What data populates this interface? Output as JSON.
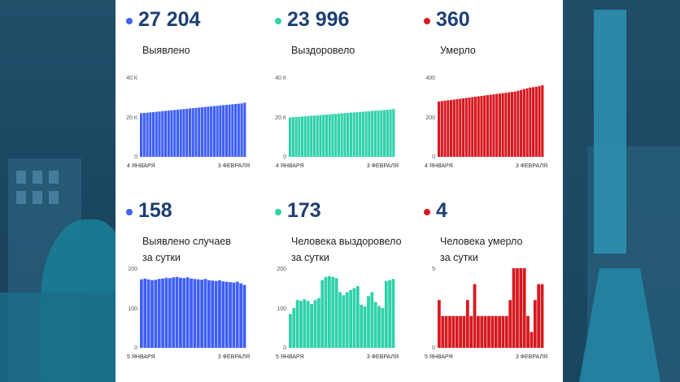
{
  "cards": [
    {
      "value": "27 204",
      "label": [
        "Выявлено"
      ],
      "color": "#3f5ff5",
      "chart_data": {
        "type": "bar",
        "x_start": "4 ЯНВАРЯ",
        "x_end": "3 ФЕВРАЛЯ",
        "yticks": [
          "0",
          "20 К",
          "40 К"
        ],
        "ylim": [
          0,
          40000
        ],
        "values": [
          21900,
          22050,
          22200,
          22350,
          22500,
          22650,
          22800,
          22950,
          23100,
          23250,
          23400,
          23550,
          23700,
          23850,
          24000,
          24150,
          24300,
          24450,
          24600,
          24750,
          24900,
          25050,
          25200,
          25350,
          25500,
          25650,
          25800,
          25950,
          26100,
          26250,
          26400,
          26550,
          26700,
          26850,
          27204
        ]
      }
    },
    {
      "value": "23 996",
      "label": [
        "Выздоровело"
      ],
      "color": "#2fd1aa",
      "chart_data": {
        "type": "bar",
        "x_start": "4 ЯНВАРЯ",
        "x_end": "3 ФЕВРАЛЯ",
        "yticks": [
          "0",
          "20 К",
          "40 К"
        ],
        "ylim": [
          0,
          40000
        ],
        "values": [
          19800,
          19920,
          20040,
          20160,
          20280,
          20400,
          20520,
          20640,
          20760,
          20880,
          21000,
          21120,
          21240,
          21360,
          21480,
          21600,
          21720,
          21840,
          21960,
          22080,
          22200,
          22320,
          22440,
          22560,
          22680,
          22800,
          22920,
          23040,
          23160,
          23280,
          23400,
          23520,
          23640,
          23800,
          23996
        ]
      }
    },
    {
      "value": "360",
      "label": [
        "Умерло"
      ],
      "color": "#d71920",
      "chart_data": {
        "type": "bar",
        "x_start": "4 ЯНВАРЯ",
        "x_end": "3 ФЕВРАЛЯ",
        "yticks": [
          "0",
          "200",
          "400"
        ],
        "ylim": [
          0,
          400
        ],
        "values": [
          278,
          280,
          282,
          284,
          286,
          288,
          290,
          292,
          294,
          296,
          298,
          300,
          302,
          304,
          306,
          308,
          310,
          312,
          314,
          316,
          318,
          320,
          322,
          324,
          326,
          328,
          332,
          336,
          340,
          344,
          348,
          350,
          352,
          356,
          360
        ]
      }
    },
    {
      "value": "158",
      "label": [
        "Выявлено случаев",
        "за сутки"
      ],
      "color": "#3f5ff5",
      "chart_data": {
        "type": "bar",
        "x_start": "5 ЯНВАРЯ",
        "x_end": "3 ФЕВРАЛЯ",
        "yticks": [
          "0",
          "100",
          "200"
        ],
        "ylim": [
          0,
          200
        ],
        "values": [
          172,
          174,
          172,
          170,
          171,
          173,
          174,
          176,
          175,
          177,
          178,
          176,
          175,
          177,
          174,
          173,
          172,
          171,
          173,
          170,
          169,
          168,
          170,
          167,
          166,
          165,
          164,
          166,
          162,
          158
        ]
      }
    },
    {
      "value": "173",
      "label": [
        "Человека выздоровело",
        "за сутки"
      ],
      "color": "#2fd1aa",
      "chart_data": {
        "type": "bar",
        "x_start": "5 ЯНВАРЯ",
        "x_end": "3 ФЕВРАЛЯ",
        "yticks": [
          "0",
          "100",
          "200"
        ],
        "ylim": [
          0,
          200
        ],
        "values": [
          85,
          100,
          120,
          118,
          122,
          118,
          110,
          120,
          125,
          170,
          178,
          180,
          178,
          175,
          140,
          132,
          140,
          145,
          150,
          155,
          108,
          104,
          130,
          140,
          115,
          105,
          100,
          168,
          170,
          173
        ]
      }
    },
    {
      "value": "4",
      "label": [
        "Человека умерло",
        "за сутки"
      ],
      "color": "#d71920",
      "chart_data": {
        "type": "bar",
        "x_start": "5 ЯНВАРЯ",
        "x_end": "3 ФЕВРАЛЯ",
        "yticks": [
          "0",
          "5"
        ],
        "ylim": [
          0,
          5
        ],
        "values": [
          3,
          2,
          2,
          2,
          2,
          2,
          2,
          2,
          3,
          2,
          4,
          2,
          2,
          2,
          2,
          2,
          2,
          2,
          2,
          2,
          3,
          5,
          5,
          5,
          5,
          2,
          1,
          3,
          4,
          4
        ]
      }
    }
  ]
}
